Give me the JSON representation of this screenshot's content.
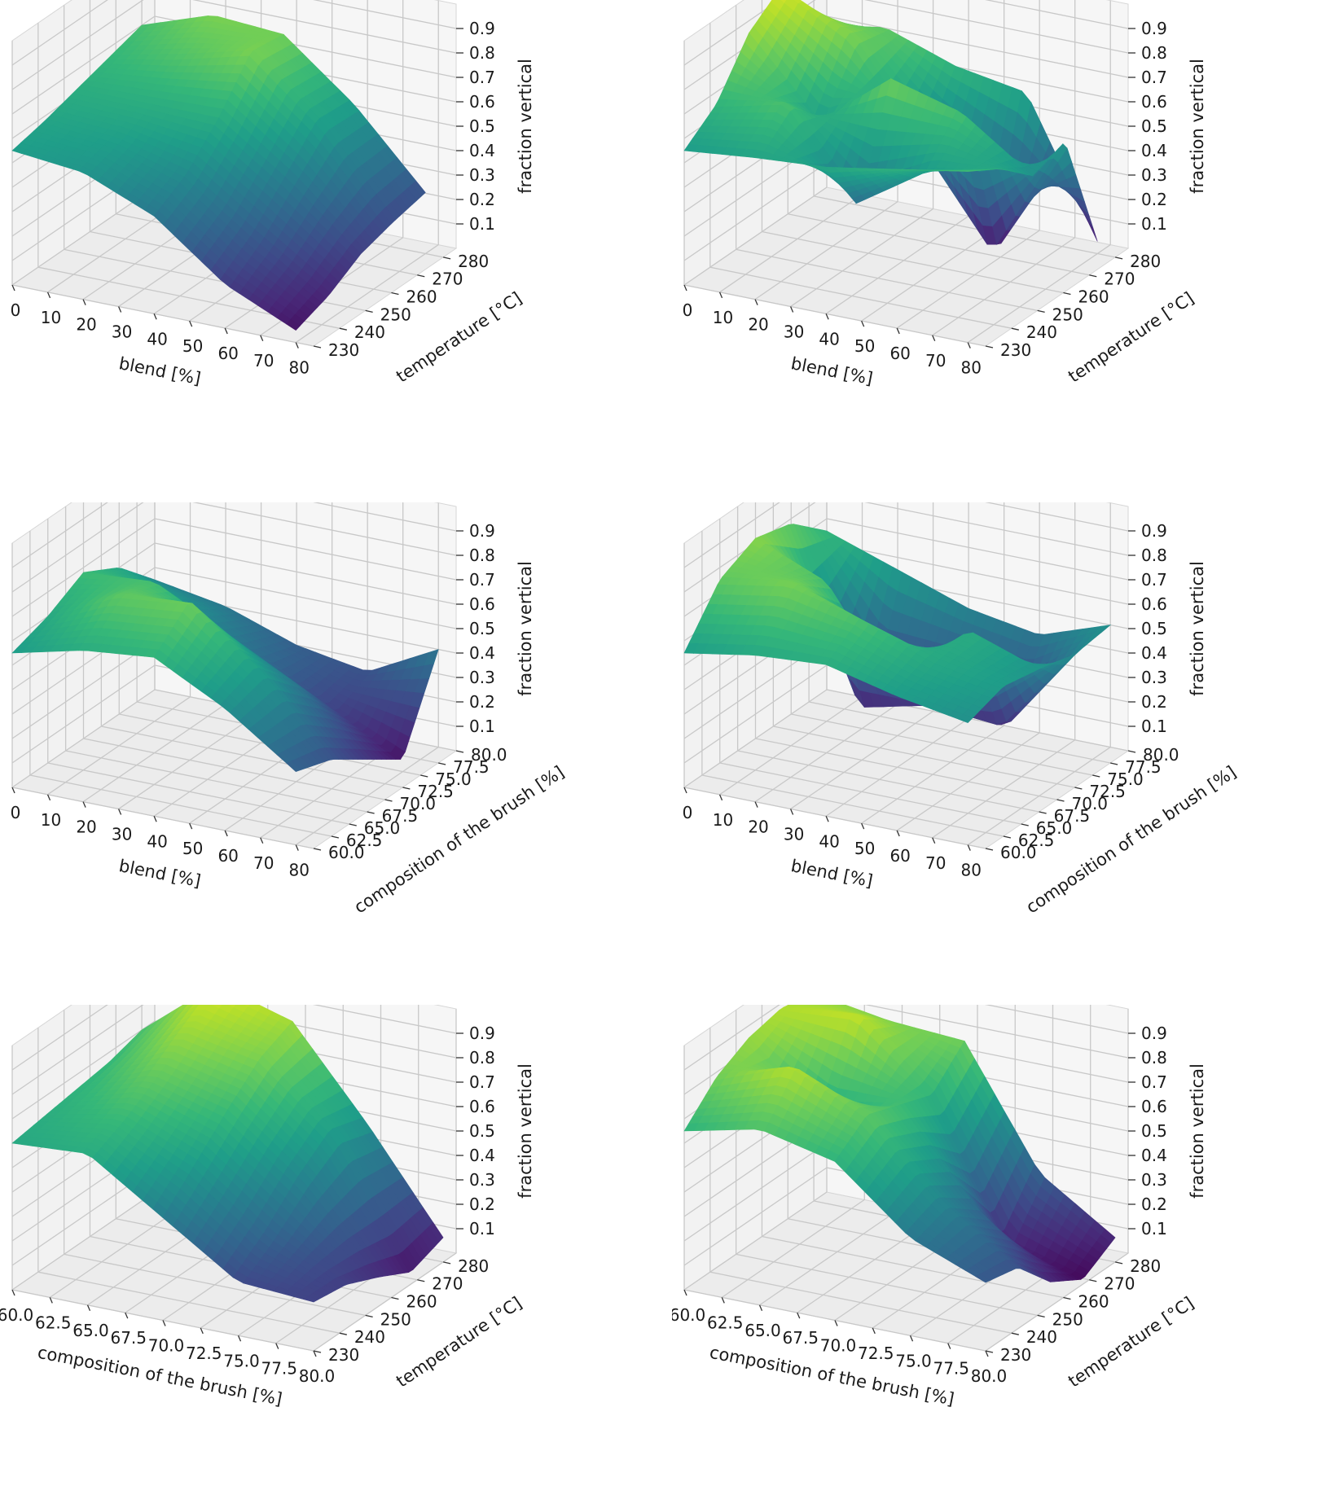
{
  "chart_data": [
    {
      "type": "surface",
      "colormap": "viridis",
      "xlabel": "blend [%]",
      "ylabel": "temperature [$^{\\circ}C$]",
      "ylabel_display": "temperature [°C]",
      "zlabel": "fraction vertical",
      "xlim": [
        0,
        85
      ],
      "ylim": [
        230,
        285
      ],
      "zlim": [
        0,
        1
      ],
      "xticks": [
        "0",
        "10",
        "20",
        "30",
        "40",
        "50",
        "60",
        "70",
        "80"
      ],
      "yticks": [
        "230",
        "240",
        "250",
        "260",
        "270",
        "280"
      ],
      "zticks": [
        "0.1",
        "0.2",
        "0.3",
        "0.4",
        "0.5",
        "0.6",
        "0.7",
        "0.8",
        "0.9"
      ],
      "grid": true,
      "x": [
        0,
        20,
        40,
        60,
        80
      ],
      "y": [
        230,
        242.5,
        255,
        267.5,
        280
      ],
      "z": [
        [
          0.55,
          0.58,
          0.62,
          0.66,
          0.7
        ],
        [
          0.52,
          0.56,
          0.62,
          0.72,
          0.8
        ],
        [
          0.4,
          0.48,
          0.62,
          0.8,
          0.78
        ],
        [
          0.18,
          0.28,
          0.42,
          0.56,
          0.55
        ],
        [
          0.05,
          0.1,
          0.18,
          0.22,
          0.25
        ]
      ]
    },
    {
      "type": "surface",
      "colormap": "viridis",
      "xlabel": "blend [%]",
      "ylabel": "temperature [$^{\\circ}C$]",
      "ylabel_display": "temperature [°C]",
      "zlabel": "fraction vertical",
      "xlim": [
        0,
        85
      ],
      "ylim": [
        230,
        285
      ],
      "zlim": [
        0,
        1
      ],
      "xticks": [
        "0",
        "10",
        "20",
        "30",
        "40",
        "50",
        "60",
        "70",
        "80"
      ],
      "yticks": [
        "230",
        "240",
        "250",
        "260",
        "270",
        "280"
      ],
      "zticks": [
        "0.1",
        "0.2",
        "0.3",
        "0.4",
        "0.5",
        "0.6",
        "0.7",
        "0.8",
        "0.9"
      ],
      "grid": true,
      "x": [
        0,
        20,
        40,
        60,
        80
      ],
      "y": [
        230,
        242.5,
        255,
        267.5,
        280
      ],
      "z": [
        [
          0.55,
          0.65,
          0.85,
          0.95,
          0.7
        ],
        [
          0.58,
          0.72,
          0.55,
          0.8,
          0.75
        ],
        [
          0.6,
          0.35,
          0.78,
          0.4,
          0.65
        ],
        [
          0.65,
          0.55,
          0.7,
          0.0,
          0.6
        ],
        [
          0.7,
          0.62,
          0.5,
          0.55,
          0.05
        ]
      ]
    },
    {
      "type": "surface",
      "colormap": "viridis",
      "xlabel": "blend [%]",
      "ylabel": "composition of the brush [%]",
      "zlabel": "fraction vertical",
      "xlim": [
        0,
        85
      ],
      "ylim": [
        60,
        80
      ],
      "zlim": [
        0,
        1
      ],
      "xticks": [
        "0",
        "10",
        "20",
        "30",
        "40",
        "50",
        "60",
        "70",
        "80"
      ],
      "yticks": [
        "60.0",
        "62.5",
        "65.0",
        "67.5",
        "70.0",
        "72.5",
        "75.0",
        "77.5",
        "80.0"
      ],
      "zticks": [
        "0.1",
        "0.2",
        "0.3",
        "0.4",
        "0.5",
        "0.6",
        "0.7",
        "0.8",
        "0.9"
      ],
      "grid": true,
      "x": [
        0,
        20,
        40,
        60,
        80
      ],
      "y": [
        60,
        65,
        70,
        75,
        80
      ],
      "z": [
        [
          0.55,
          0.6,
          0.68,
          0.6,
          0.45
        ],
        [
          0.62,
          0.75,
          0.7,
          0.5,
          0.4
        ],
        [
          0.65,
          0.78,
          0.55,
          0.35,
          0.3
        ],
        [
          0.5,
          0.55,
          0.4,
          0.2,
          0.25
        ],
        [
          0.3,
          0.25,
          0.15,
          0.05,
          0.4
        ]
      ]
    },
    {
      "type": "surface",
      "colormap": "viridis",
      "xlabel": "blend [%]",
      "ylabel": "composition of the brush [%]",
      "zlabel": "fraction vertical",
      "xlim": [
        0,
        85
      ],
      "ylim": [
        60,
        80
      ],
      "zlim": [
        0,
        1
      ],
      "xticks": [
        "0",
        "10",
        "20",
        "30",
        "40",
        "50",
        "60",
        "70",
        "80"
      ],
      "yticks": [
        "60.0",
        "62.5",
        "65.0",
        "67.5",
        "70.0",
        "72.5",
        "75.0",
        "77.5",
        "80.0"
      ],
      "zticks": [
        "0.1",
        "0.2",
        "0.3",
        "0.4",
        "0.5",
        "0.6",
        "0.7",
        "0.8",
        "0.9"
      ],
      "grid": true,
      "x": [
        0,
        20,
        40,
        60,
        80
      ],
      "y": [
        60,
        65,
        70,
        75,
        80
      ],
      "z": [
        [
          0.55,
          0.75,
          0.82,
          0.78,
          0.65
        ],
        [
          0.6,
          0.8,
          0.7,
          0.05,
          0.55
        ],
        [
          0.62,
          0.72,
          0.3,
          0.15,
          0.45
        ],
        [
          0.55,
          0.6,
          0.62,
          0.1,
          0.4
        ],
        [
          0.5,
          0.55,
          0.52,
          0.48,
          0.5
        ]
      ]
    },
    {
      "type": "surface",
      "colormap": "viridis",
      "xlabel": "composition of the brush [%]",
      "ylabel": "temperature [$^{\\circ}C$]",
      "ylabel_display": "temperature [°C]",
      "zlabel": "fraction vertical",
      "xlim": [
        60,
        80
      ],
      "ylim": [
        230,
        285
      ],
      "zlim": [
        0,
        1
      ],
      "xticks": [
        "60.0",
        "62.5",
        "65.0",
        "67.5",
        "70.0",
        "72.5",
        "75.0",
        "77.5",
        "80.0"
      ],
      "yticks": [
        "230",
        "240",
        "250",
        "260",
        "270",
        "280"
      ],
      "zticks": [
        "0.1",
        "0.2",
        "0.3",
        "0.4",
        "0.5",
        "0.6",
        "0.7",
        "0.8",
        "0.9"
      ],
      "grid": true,
      "x": [
        60,
        65,
        70,
        75,
        80
      ],
      "y": [
        230,
        242.5,
        255,
        267.5,
        280
      ],
      "z": [
        [
          0.6,
          0.62,
          0.64,
          0.66,
          0.7
        ],
        [
          0.62,
          0.68,
          0.76,
          0.86,
          0.95
        ],
        [
          0.42,
          0.55,
          0.68,
          0.8,
          0.86
        ],
        [
          0.22,
          0.32,
          0.45,
          0.55,
          0.5
        ],
        [
          0.2,
          0.18,
          0.12,
          0.05,
          0.1
        ]
      ]
    },
    {
      "type": "surface",
      "colormap": "viridis",
      "xlabel": "composition of the brush [%]",
      "ylabel": "temperature [$^{\\circ}C$]",
      "ylabel_display": "temperature [°C]",
      "zlabel": "fraction vertical",
      "xlim": [
        60,
        80
      ],
      "ylim": [
        230,
        285
      ],
      "zlim": [
        0,
        1
      ],
      "xticks": [
        "60.0",
        "62.5",
        "65.0",
        "67.5",
        "70.0",
        "72.5",
        "75.0",
        "77.5",
        "80.0"
      ],
      "yticks": [
        "230",
        "240",
        "250",
        "260",
        "270",
        "280"
      ],
      "zticks": [
        "0.1",
        "0.2",
        "0.3",
        "0.4",
        "0.5",
        "0.6",
        "0.7",
        "0.8",
        "0.9"
      ],
      "grid": true,
      "x": [
        60,
        65,
        70,
        75,
        80
      ],
      "y": [
        230,
        242.5,
        255,
        267.5,
        280
      ],
      "z": [
        [
          0.65,
          0.78,
          0.85,
          0.88,
          0.85
        ],
        [
          0.72,
          0.9,
          0.6,
          0.92,
          0.8
        ],
        [
          0.65,
          0.75,
          0.7,
          0.65,
          0.78
        ],
        [
          0.4,
          0.45,
          0.35,
          0.1,
          0.3
        ],
        [
          0.28,
          0.25,
          0.1,
          0.02,
          0.1
        ]
      ]
    }
  ]
}
